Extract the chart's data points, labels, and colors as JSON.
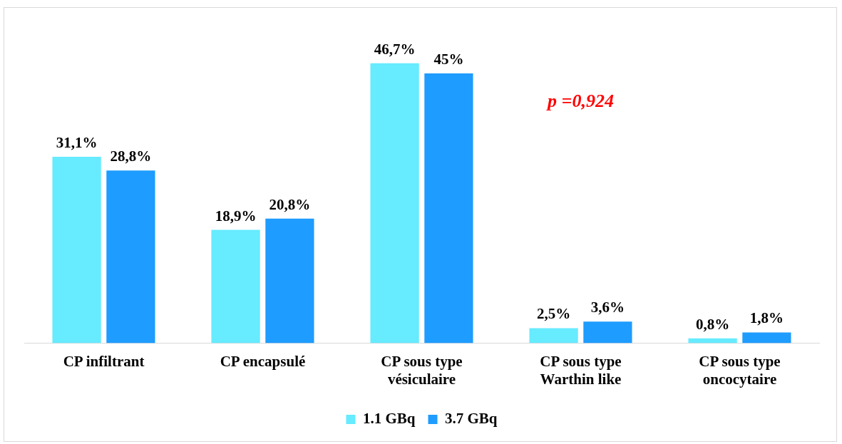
{
  "chart_data": {
    "type": "bar",
    "categories": [
      "CP infiltrant",
      "CP encapsulé",
      "CP sous type vésiculaire",
      "CP sous type Warthin like",
      "CP sous type oncocytaire"
    ],
    "series": [
      {
        "name": "1.1 GBq",
        "color": "#66ebff",
        "values": [
          31.1,
          18.9,
          46.7,
          2.5,
          0.8
        ],
        "value_labels": [
          "31,1%",
          "18,9%",
          "46,7%",
          "2,5%",
          "0,8%"
        ]
      },
      {
        "name": "3.7 GBq",
        "color": "#1e9cff",
        "values": [
          28.8,
          20.8,
          45,
          3.6,
          1.8
        ],
        "value_labels": [
          "28,8%",
          "20,8%",
          "45%",
          "3,6%",
          "1,8%"
        ]
      }
    ],
    "grid": false,
    "legend": "bottom",
    "annotations": [
      "p =0,924"
    ]
  }
}
